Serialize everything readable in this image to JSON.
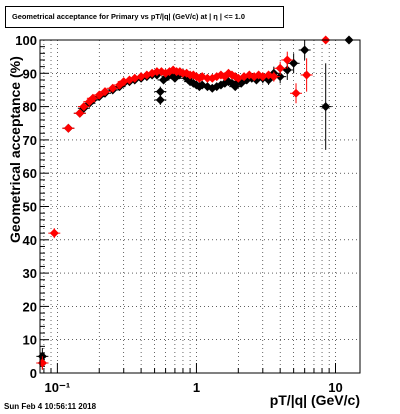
{
  "chart_data": {
    "type": "scatter",
    "title": "Geometrical acceptance for Primary vs pT/|q| (GeV/c) at | η | <= 1.0",
    "xlabel": "pT/|q| (GeV/c)",
    "ylabel": "Geometrical acceptance (%)",
    "xscale": "log",
    "xlim": [
      0.075,
      15
    ],
    "ylim": [
      0,
      100
    ],
    "x_tick_labels": [
      "10⁻¹",
      "1",
      "10"
    ],
    "x_tick_values": [
      0.1,
      1,
      10
    ],
    "y_tick_labels": [
      "0",
      "10",
      "20",
      "30",
      "40",
      "50",
      "60",
      "70",
      "80",
      "90",
      "100"
    ],
    "y_tick_values": [
      0,
      10,
      20,
      30,
      40,
      50,
      60,
      70,
      80,
      90,
      100
    ],
    "grid": true,
    "footer": "Sun Feb  4 10:56:11 2018",
    "series": [
      {
        "color": "#000000",
        "marker": "diamond",
        "points": [
          [
            0.078,
            5,
            2.5
          ],
          [
            0.078,
            3,
            2
          ],
          [
            0.12,
            73.5,
            1
          ],
          [
            0.145,
            78,
            0.8
          ],
          [
            0.155,
            79.5,
            0.7
          ],
          [
            0.17,
            81,
            0.6
          ],
          [
            0.18,
            82,
            0.6
          ],
          [
            0.2,
            83,
            0.5
          ],
          [
            0.22,
            84,
            0.5
          ],
          [
            0.25,
            85,
            0.5
          ],
          [
            0.28,
            86,
            0.5
          ],
          [
            0.3,
            87,
            0.5
          ],
          [
            0.33,
            87.5,
            0.5
          ],
          [
            0.36,
            88,
            0.5
          ],
          [
            0.4,
            88.5,
            0.5
          ],
          [
            0.44,
            89,
            0.5
          ],
          [
            0.48,
            89.5,
            0.5
          ],
          [
            0.52,
            89.5,
            0.6
          ],
          [
            0.55,
            84.5,
            1.5
          ],
          [
            0.55,
            82,
            1.5
          ],
          [
            0.58,
            88,
            0.8
          ],
          [
            0.62,
            89,
            0.8
          ],
          [
            0.66,
            89.5,
            0.8
          ],
          [
            0.7,
            88.5,
            0.8
          ],
          [
            0.75,
            89.5,
            0.8
          ],
          [
            0.8,
            90,
            0.8
          ],
          [
            0.85,
            88.5,
            0.8
          ],
          [
            0.9,
            87.5,
            0.8
          ],
          [
            0.95,
            87,
            0.8
          ],
          [
            1.0,
            86.5,
            0.8
          ],
          [
            1.05,
            86,
            0.8
          ],
          [
            1.1,
            86.5,
            0.8
          ],
          [
            1.2,
            86,
            0.8
          ],
          [
            1.3,
            85.5,
            0.8
          ],
          [
            1.4,
            86,
            0.8
          ],
          [
            1.5,
            86.5,
            1
          ],
          [
            1.6,
            87,
            1
          ],
          [
            1.7,
            87.5,
            1
          ],
          [
            1.8,
            87,
            1
          ],
          [
            1.9,
            86,
            1
          ],
          [
            2.0,
            87.5,
            1
          ],
          [
            2.1,
            87,
            1
          ],
          [
            2.3,
            88,
            1
          ],
          [
            2.5,
            88.5,
            1
          ],
          [
            2.7,
            88,
            1
          ],
          [
            3.0,
            88.5,
            1.5
          ],
          [
            3.3,
            88,
            1.5
          ],
          [
            3.6,
            90,
            2
          ],
          [
            4.0,
            89,
            2
          ],
          [
            4.5,
            91,
            3
          ],
          [
            5.0,
            93,
            3
          ],
          [
            6.0,
            97,
            3
          ],
          [
            8.5,
            80,
            13
          ],
          [
            12.5,
            100,
            0
          ]
        ]
      },
      {
        "color": "#ff0000",
        "marker": "diamond",
        "points": [
          [
            0.078,
            3,
            2
          ],
          [
            0.095,
            42,
            1.5
          ],
          [
            0.12,
            73.5,
            1
          ],
          [
            0.145,
            78,
            0.8
          ],
          [
            0.155,
            80,
            0.7
          ],
          [
            0.17,
            81.5,
            0.6
          ],
          [
            0.18,
            82.5,
            0.6
          ],
          [
            0.2,
            83.5,
            0.5
          ],
          [
            0.22,
            84.5,
            0.5
          ],
          [
            0.25,
            85.5,
            0.5
          ],
          [
            0.28,
            86.5,
            0.5
          ],
          [
            0.3,
            87.5,
            0.5
          ],
          [
            0.33,
            88,
            0.5
          ],
          [
            0.36,
            88.5,
            0.5
          ],
          [
            0.4,
            89,
            0.5
          ],
          [
            0.44,
            89.5,
            0.5
          ],
          [
            0.48,
            90,
            0.5
          ],
          [
            0.52,
            90.5,
            0.6
          ],
          [
            0.56,
            90.5,
            0.6
          ],
          [
            0.6,
            90,
            0.6
          ],
          [
            0.64,
            90.5,
            0.6
          ],
          [
            0.68,
            91,
            0.6
          ],
          [
            0.72,
            90.5,
            0.6
          ],
          [
            0.76,
            90.5,
            0.6
          ],
          [
            0.8,
            90,
            0.6
          ],
          [
            0.85,
            90,
            0.6
          ],
          [
            0.9,
            89.5,
            0.6
          ],
          [
            0.95,
            89.5,
            0.6
          ],
          [
            1.0,
            89,
            0.6
          ],
          [
            1.05,
            88.5,
            0.6
          ],
          [
            1.1,
            89,
            0.6
          ],
          [
            1.2,
            88.5,
            0.6
          ],
          [
            1.3,
            88.5,
            0.6
          ],
          [
            1.4,
            89,
            0.6
          ],
          [
            1.5,
            89.5,
            0.7
          ],
          [
            1.6,
            89,
            0.7
          ],
          [
            1.7,
            90,
            0.7
          ],
          [
            1.8,
            89.5,
            0.7
          ],
          [
            1.9,
            89,
            0.7
          ],
          [
            2.0,
            88.5,
            0.7
          ],
          [
            2.2,
            89,
            0.7
          ],
          [
            2.4,
            89.5,
            0.8
          ],
          [
            2.6,
            89,
            0.8
          ],
          [
            2.8,
            89.5,
            0.8
          ],
          [
            3.0,
            89,
            1
          ],
          [
            3.3,
            89.5,
            1
          ],
          [
            3.6,
            89,
            1.5
          ],
          [
            4.0,
            91.5,
            2
          ],
          [
            4.5,
            94,
            2.5
          ],
          [
            5.2,
            84,
            3
          ],
          [
            6.2,
            89.5,
            5
          ],
          [
            8.5,
            100,
            0
          ]
        ]
      }
    ]
  }
}
